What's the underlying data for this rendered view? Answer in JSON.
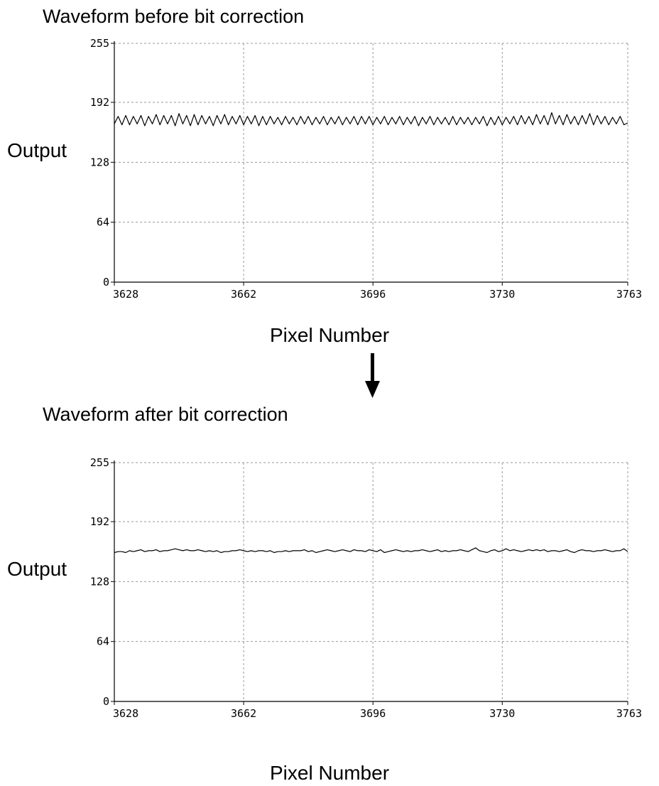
{
  "chart_data": [
    {
      "type": "line",
      "title": "Waveform before bit correction",
      "xlabel": "Pixel Number",
      "ylabel": "Output",
      "xlim": [
        3628,
        3763
      ],
      "ylim": [
        0,
        255
      ],
      "xticks": [
        "3628",
        "3662",
        "3696",
        "3730",
        "3763"
      ],
      "yticks": [
        "0",
        "64",
        "128",
        "192",
        "255"
      ],
      "grid": true,
      "series": [
        {
          "color": "#000000",
          "x": [
            3628,
            3629,
            3630,
            3631,
            3632,
            3633,
            3634,
            3635,
            3636,
            3637,
            3638,
            3639,
            3640,
            3641,
            3642,
            3643,
            3644,
            3645,
            3646,
            3647,
            3648,
            3649,
            3650,
            3651,
            3652,
            3653,
            3654,
            3655,
            3656,
            3657,
            3658,
            3659,
            3660,
            3661,
            3662,
            3663,
            3664,
            3665,
            3666,
            3667,
            3668,
            3669,
            3670,
            3671,
            3672,
            3673,
            3674,
            3675,
            3676,
            3677,
            3678,
            3679,
            3680,
            3681,
            3682,
            3683,
            3684,
            3685,
            3686,
            3687,
            3688,
            3689,
            3690,
            3691,
            3692,
            3693,
            3694,
            3695,
            3696,
            3697,
            3698,
            3699,
            3700,
            3701,
            3702,
            3703,
            3704,
            3705,
            3706,
            3707,
            3708,
            3709,
            3710,
            3711,
            3712,
            3713,
            3714,
            3715,
            3716,
            3717,
            3718,
            3719,
            3720,
            3721,
            3722,
            3723,
            3724,
            3725,
            3726,
            3727,
            3728,
            3729,
            3730,
            3731,
            3732,
            3733,
            3734,
            3735,
            3736,
            3737,
            3738,
            3739,
            3740,
            3741,
            3742,
            3743,
            3744,
            3745,
            3746,
            3747,
            3748,
            3749,
            3750,
            3751,
            3752,
            3753,
            3754,
            3755,
            3756,
            3757,
            3758,
            3759,
            3760,
            3761,
            3762,
            3763
          ],
          "values": [
            169,
            177,
            168,
            178,
            168,
            177,
            169,
            178,
            167,
            177,
            169,
            179,
            168,
            178,
            169,
            178,
            167,
            180,
            169,
            178,
            167,
            179,
            168,
            178,
            169,
            177,
            167,
            178,
            169,
            179,
            168,
            177,
            169,
            178,
            168,
            177,
            169,
            178,
            167,
            177,
            168,
            177,
            169,
            176,
            168,
            177,
            169,
            176,
            168,
            177,
            169,
            177,
            168,
            176,
            169,
            177,
            168,
            176,
            169,
            177,
            168,
            176,
            169,
            177,
            168,
            177,
            169,
            177,
            168,
            176,
            169,
            177,
            168,
            176,
            169,
            177,
            168,
            176,
            169,
            177,
            167,
            176,
            169,
            177,
            168,
            176,
            169,
            176,
            168,
            177,
            168,
            176,
            169,
            176,
            168,
            176,
            169,
            177,
            167,
            176,
            168,
            177,
            168,
            176,
            169,
            177,
            168,
            178,
            169,
            177,
            168,
            179,
            169,
            178,
            168,
            181,
            169,
            178,
            168,
            179,
            169,
            177,
            168,
            178,
            169,
            180,
            168,
            178,
            169,
            177,
            168,
            176,
            169,
            177,
            168,
            170
          ]
        }
      ]
    },
    {
      "type": "line",
      "title": "Waveform after bit correction",
      "xlabel": "Pixel Number",
      "ylabel": "Output",
      "xlim": [
        3628,
        3763
      ],
      "ylim": [
        0,
        255
      ],
      "xticks": [
        "3628",
        "3662",
        "3696",
        "3730",
        "3763"
      ],
      "yticks": [
        "0",
        "64",
        "128",
        "192",
        "255"
      ],
      "grid": true,
      "series": [
        {
          "color": "#000000",
          "x": [
            3628,
            3629,
            3630,
            3631,
            3632,
            3633,
            3634,
            3635,
            3636,
            3637,
            3638,
            3639,
            3640,
            3641,
            3642,
            3643,
            3644,
            3645,
            3646,
            3647,
            3648,
            3649,
            3650,
            3651,
            3652,
            3653,
            3654,
            3655,
            3656,
            3657,
            3658,
            3659,
            3660,
            3661,
            3662,
            3663,
            3664,
            3665,
            3666,
            3667,
            3668,
            3669,
            3670,
            3671,
            3672,
            3673,
            3674,
            3675,
            3676,
            3677,
            3678,
            3679,
            3680,
            3681,
            3682,
            3683,
            3684,
            3685,
            3686,
            3687,
            3688,
            3689,
            3690,
            3691,
            3692,
            3693,
            3694,
            3695,
            3696,
            3697,
            3698,
            3699,
            3700,
            3701,
            3702,
            3703,
            3704,
            3705,
            3706,
            3707,
            3708,
            3709,
            3710,
            3711,
            3712,
            3713,
            3714,
            3715,
            3716,
            3717,
            3718,
            3719,
            3720,
            3721,
            3722,
            3723,
            3724,
            3725,
            3726,
            3727,
            3728,
            3729,
            3730,
            3731,
            3732,
            3733,
            3734,
            3735,
            3736,
            3737,
            3738,
            3739,
            3740,
            3741,
            3742,
            3743,
            3744,
            3745,
            3746,
            3747,
            3748,
            3749,
            3750,
            3751,
            3752,
            3753,
            3754,
            3755,
            3756,
            3757,
            3758,
            3759,
            3760,
            3761,
            3762,
            3763
          ],
          "values": [
            159,
            160,
            160,
            159,
            161,
            160,
            161,
            162,
            160,
            161,
            161,
            162,
            160,
            161,
            161,
            162,
            163,
            162,
            161,
            162,
            161,
            161,
            162,
            161,
            160,
            161,
            160,
            161,
            159,
            160,
            160,
            161,
            161,
            162,
            161,
            160,
            161,
            160,
            161,
            161,
            160,
            161,
            159,
            160,
            160,
            161,
            160,
            161,
            161,
            161,
            162,
            160,
            161,
            159,
            160,
            161,
            162,
            161,
            160,
            161,
            162,
            161,
            160,
            162,
            161,
            161,
            160,
            162,
            161,
            160,
            162,
            159,
            160,
            161,
            162,
            161,
            160,
            161,
            160,
            161,
            161,
            162,
            161,
            160,
            161,
            162,
            160,
            161,
            160,
            161,
            161,
            162,
            161,
            160,
            162,
            164,
            161,
            160,
            159,
            161,
            162,
            160,
            161,
            163,
            161,
            162,
            161,
            160,
            161,
            162,
            161,
            162,
            161,
            162,
            160,
            161,
            161,
            160,
            161,
            162,
            160,
            159,
            161,
            162,
            161,
            161,
            160,
            161,
            161,
            162,
            161,
            160,
            161,
            161,
            163,
            160
          ]
        }
      ]
    }
  ]
}
